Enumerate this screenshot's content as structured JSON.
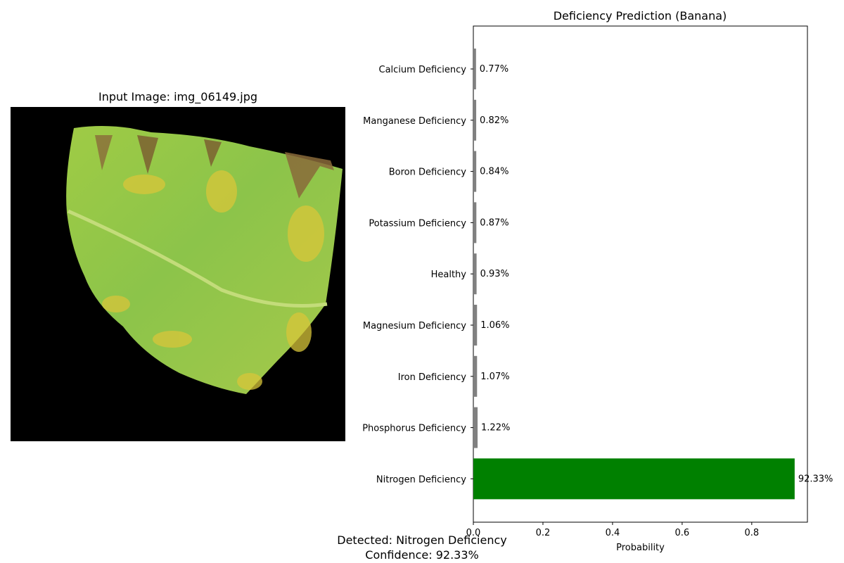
{
  "left_panel": {
    "title": "Input Image: img_06149.jpg"
  },
  "footer": {
    "detected": "Detected: Nitrogen Deficiency",
    "confidence": "Confidence: 92.33%"
  },
  "colors": {
    "top_bar": "#008000",
    "other_bars": "#808080",
    "image_background": "#000000"
  },
  "chart_data": {
    "type": "bar",
    "orientation": "horizontal",
    "title": "Deficiency Prediction (Banana)",
    "xlabel": "Probability",
    "ylabel": "",
    "xlim": [
      0,
      0.96
    ],
    "xticks": [
      0.0,
      0.2,
      0.4,
      0.6,
      0.8
    ],
    "xtick_labels": [
      "0.0",
      "0.2",
      "0.4",
      "0.6",
      "0.8"
    ],
    "grid": false,
    "categories": [
      "Calcium Deficiency",
      "Manganese Deficiency",
      "Boron Deficiency",
      "Potassium Deficiency",
      "Healthy",
      "Magnesium Deficiency",
      "Iron Deficiency",
      "Phosphorus Deficiency",
      "Nitrogen Deficiency"
    ],
    "values": [
      0.0077,
      0.0082,
      0.0084,
      0.0087,
      0.0093,
      0.0106,
      0.0107,
      0.0122,
      0.9233
    ],
    "value_labels": [
      "0.77%",
      "0.82%",
      "0.84%",
      "0.87%",
      "0.93%",
      "1.06%",
      "1.07%",
      "1.22%",
      "92.33%"
    ],
    "highlight_index": 8
  }
}
